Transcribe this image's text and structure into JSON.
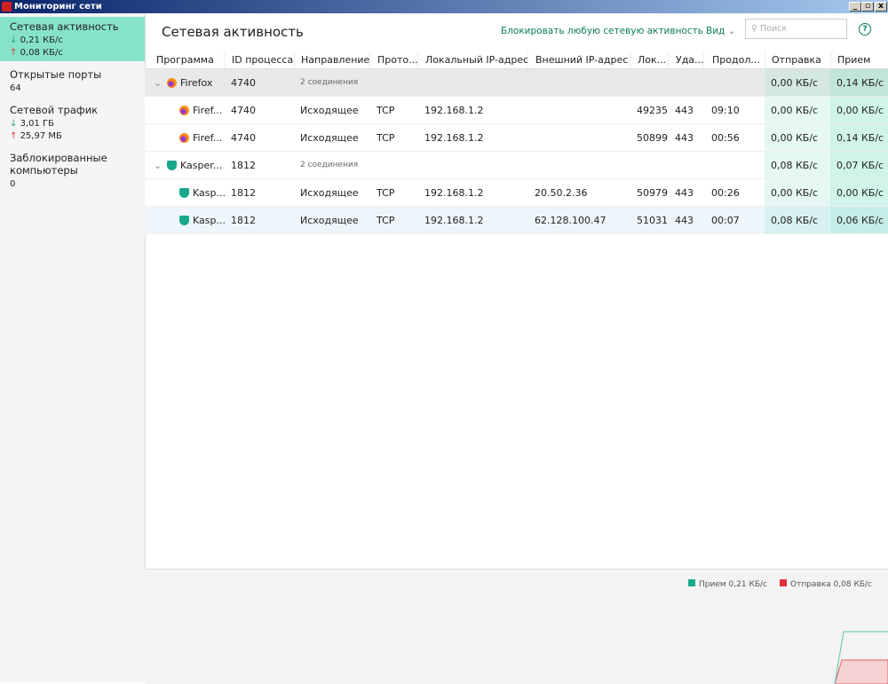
{
  "window": {
    "title": "Мониторинг сети"
  },
  "sidebar": {
    "items": [
      {
        "label": "Сетевая активность",
        "lines": [
          "0,21 КБ/с",
          "0,08 КБ/с"
        ]
      },
      {
        "label": "Открытые порты",
        "lines": [
          "64"
        ]
      },
      {
        "label": "Сетевой трафик",
        "lines": [
          "3,01 ГБ",
          "25,97 МБ"
        ]
      },
      {
        "label": "Заблокированные компьютеры",
        "lines": [
          "0"
        ]
      }
    ]
  },
  "header": {
    "title": "Сетевая активность",
    "block": "Блокировать любую сетевую активность",
    "view": "Вид",
    "search": "Поиск"
  },
  "table": {
    "columns": [
      "Программа",
      "ID процесса",
      "Направление",
      "Прото...",
      "Локальный IP-адрес",
      "Внешний IP-адрес",
      "Лок...",
      "Уда...",
      "Продол...",
      "Отправка",
      "Прием"
    ],
    "groups": [
      {
        "program": "Firefox",
        "pid": "4740",
        "connections": "2 соединения",
        "send": "0,00 КБ/с",
        "recv": "0,14 КБ/с",
        "rows": [
          [
            "Firef...",
            "4740",
            "Исходящее",
            "TCP",
            "192.168.1.2",
            null,
            "49235",
            "443",
            "09:10",
            "0,00 КБ/с",
            "0,00 КБ/с"
          ],
          [
            "Firef...",
            "4740",
            "Исходящее",
            "TCP",
            "192.168.1.2",
            null,
            "50899",
            "443",
            "00:56",
            "0,00 КБ/с",
            "0,14 КБ/с"
          ]
        ]
      },
      {
        "program": "Kasper...",
        "pid": "1812",
        "connections": "2 соединения",
        "send": "0,08 КБ/с",
        "recv": "0,07 КБ/с",
        "rows": [
          [
            "Kasp...",
            "1812",
            "Исходящее",
            "TCP",
            "192.168.1.2",
            "20.50.2.36",
            "50979",
            "443",
            "00:26",
            "0,00 КБ/с",
            "0,00 КБ/с"
          ],
          [
            "Kasp...",
            "1812",
            "Исходящее",
            "TCP",
            "192.168.1.2",
            "62.128.100.47",
            "51031",
            "443",
            "00:07",
            "0,08 КБ/с",
            "0,06 КБ/с"
          ]
        ]
      }
    ]
  },
  "footer": {
    "legend": [
      {
        "label": "Прием 0,21 КБ/с",
        "color": "#1aa88a"
      },
      {
        "label": "Отправка 0,08 КБ/с",
        "color": "#e0303a"
      }
    ]
  }
}
